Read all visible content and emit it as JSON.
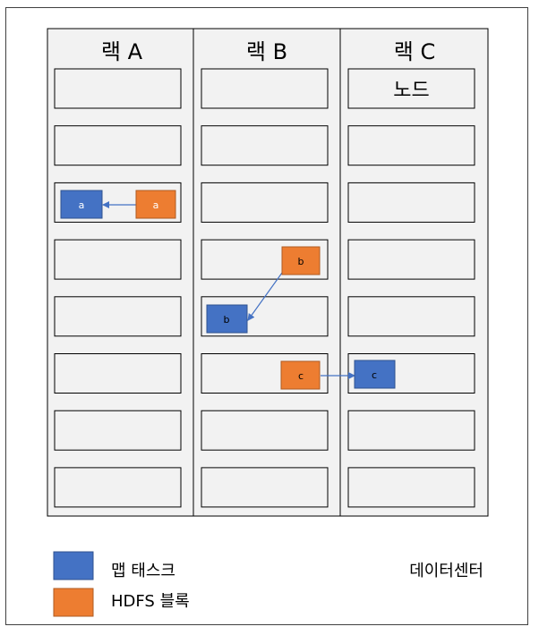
{
  "racks": [
    {
      "label": "랙 A",
      "nodes": [
        "",
        "",
        "",
        "",
        "",
        "",
        "",
        ""
      ]
    },
    {
      "label": "랙 B",
      "nodes": [
        "",
        "",
        "",
        "",
        "",
        "",
        "",
        ""
      ]
    },
    {
      "label": "랙 C",
      "nodes": [
        "노드",
        "",
        "",
        "",
        "",
        "",
        "",
        ""
      ]
    }
  ],
  "blocks": {
    "hdfs_a": "a",
    "map_a": "a",
    "hdfs_b": "b",
    "map_b": "b",
    "hdfs_c": "c",
    "map_c": "c"
  },
  "legend": {
    "map_task": "맵 태스크",
    "hdfs_block": "HDFS 블록"
  },
  "datacenter_label": "데이터센터",
  "colors": {
    "map_task": "#4472c4",
    "hdfs_block": "#ed7d31",
    "rack_fill": "#f2f2f2",
    "arrow": "#4472c4"
  }
}
